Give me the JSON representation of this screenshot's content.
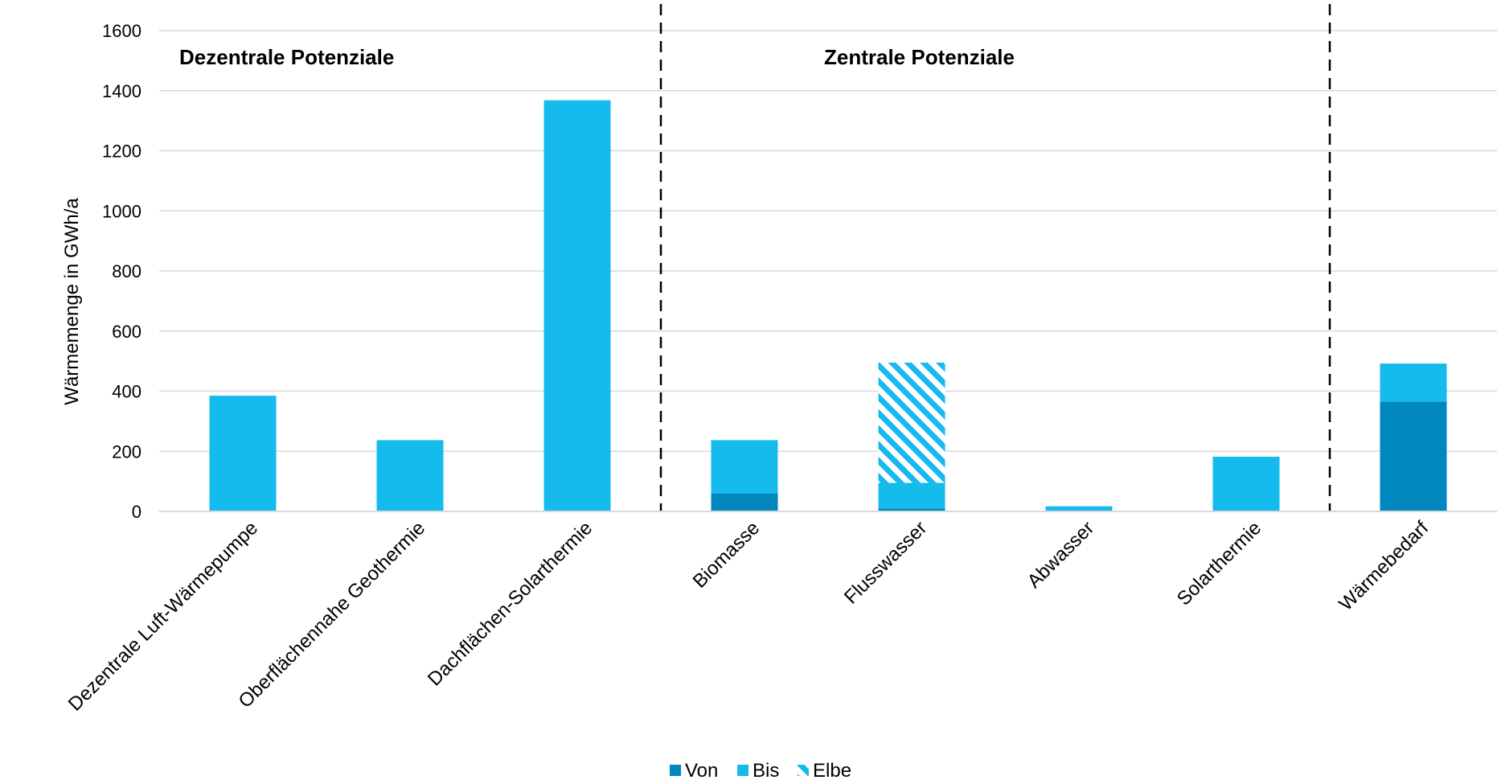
{
  "chart_data": {
    "type": "bar",
    "stacked": true,
    "ylabel": "Wärmemenge in GWh/a",
    "ylim": [
      0,
      1600
    ],
    "yticks": [
      0,
      200,
      400,
      600,
      800,
      1000,
      1200,
      1400,
      1600
    ],
    "grid": true,
    "legend_position": "bottom",
    "categories": [
      "Dezentrale Luft-Wärmepumpe",
      "Oberflächennahe Geothermie",
      "Dachflächen-Solarthermie",
      "Biomasse",
      "Flusswasser",
      "Abwasser",
      "Solarthermie",
      "Wärmebedarf"
    ],
    "series": [
      {
        "name": "Von",
        "color": "#0087BD",
        "values": [
          0,
          0,
          0,
          60,
          10,
          0,
          0,
          365
        ]
      },
      {
        "name": "Bis",
        "color": "#14BBEC",
        "values": [
          385,
          237,
          1368,
          177,
          85,
          17,
          182,
          127
        ]
      },
      {
        "name": "Elbe",
        "color": "#14BBEC",
        "pattern": "hatched",
        "values": [
          0,
          0,
          0,
          0,
          400,
          0,
          0,
          0
        ]
      }
    ],
    "groups": [
      {
        "label": "Dezentrale Potenziale",
        "categories": [
          0,
          1,
          2
        ]
      },
      {
        "label": "Zentrale Potenziale",
        "categories": [
          3,
          4,
          5,
          6
        ]
      },
      {
        "label": "",
        "categories": [
          7
        ]
      }
    ]
  }
}
